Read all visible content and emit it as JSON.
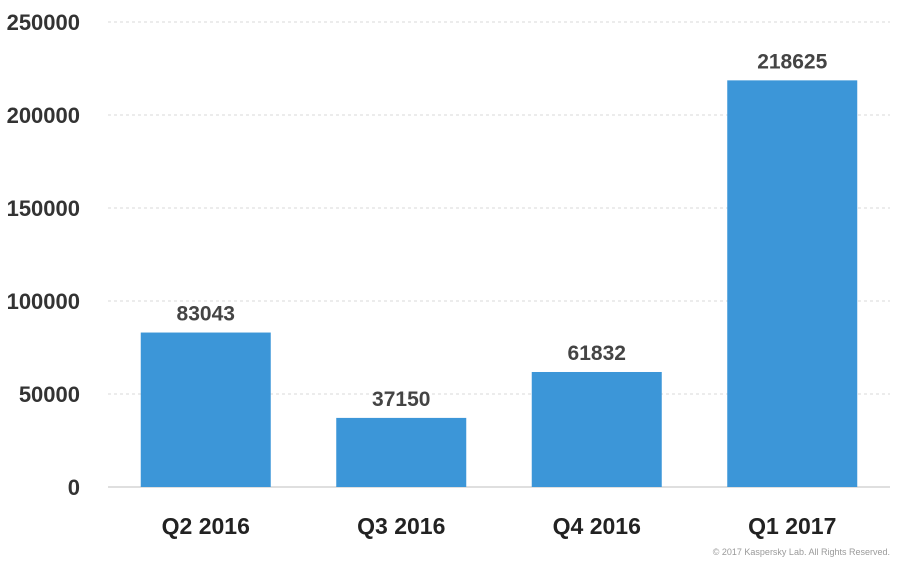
{
  "chart_data": {
    "type": "bar",
    "categories": [
      "Q2 2016",
      "Q3 2016",
      "Q4 2016",
      "Q1 2017"
    ],
    "values": [
      83043,
      37150,
      61832,
      218625
    ],
    "data_labels": [
      "83043",
      "37150",
      "61832",
      "218625"
    ],
    "ylim": [
      0,
      250000
    ],
    "yticks": [
      0,
      50000,
      100000,
      150000,
      200000,
      250000
    ],
    "ytick_labels": [
      "0",
      "50000",
      "100000",
      "150000",
      "200000",
      "250000"
    ],
    "title": "",
    "xlabel": "",
    "ylabel": "",
    "grid": true,
    "legend": "none",
    "bar_color": "#3c96d8"
  },
  "footer": {
    "copyright": "© 2017 Kaspersky Lab. All Rights Reserved."
  }
}
